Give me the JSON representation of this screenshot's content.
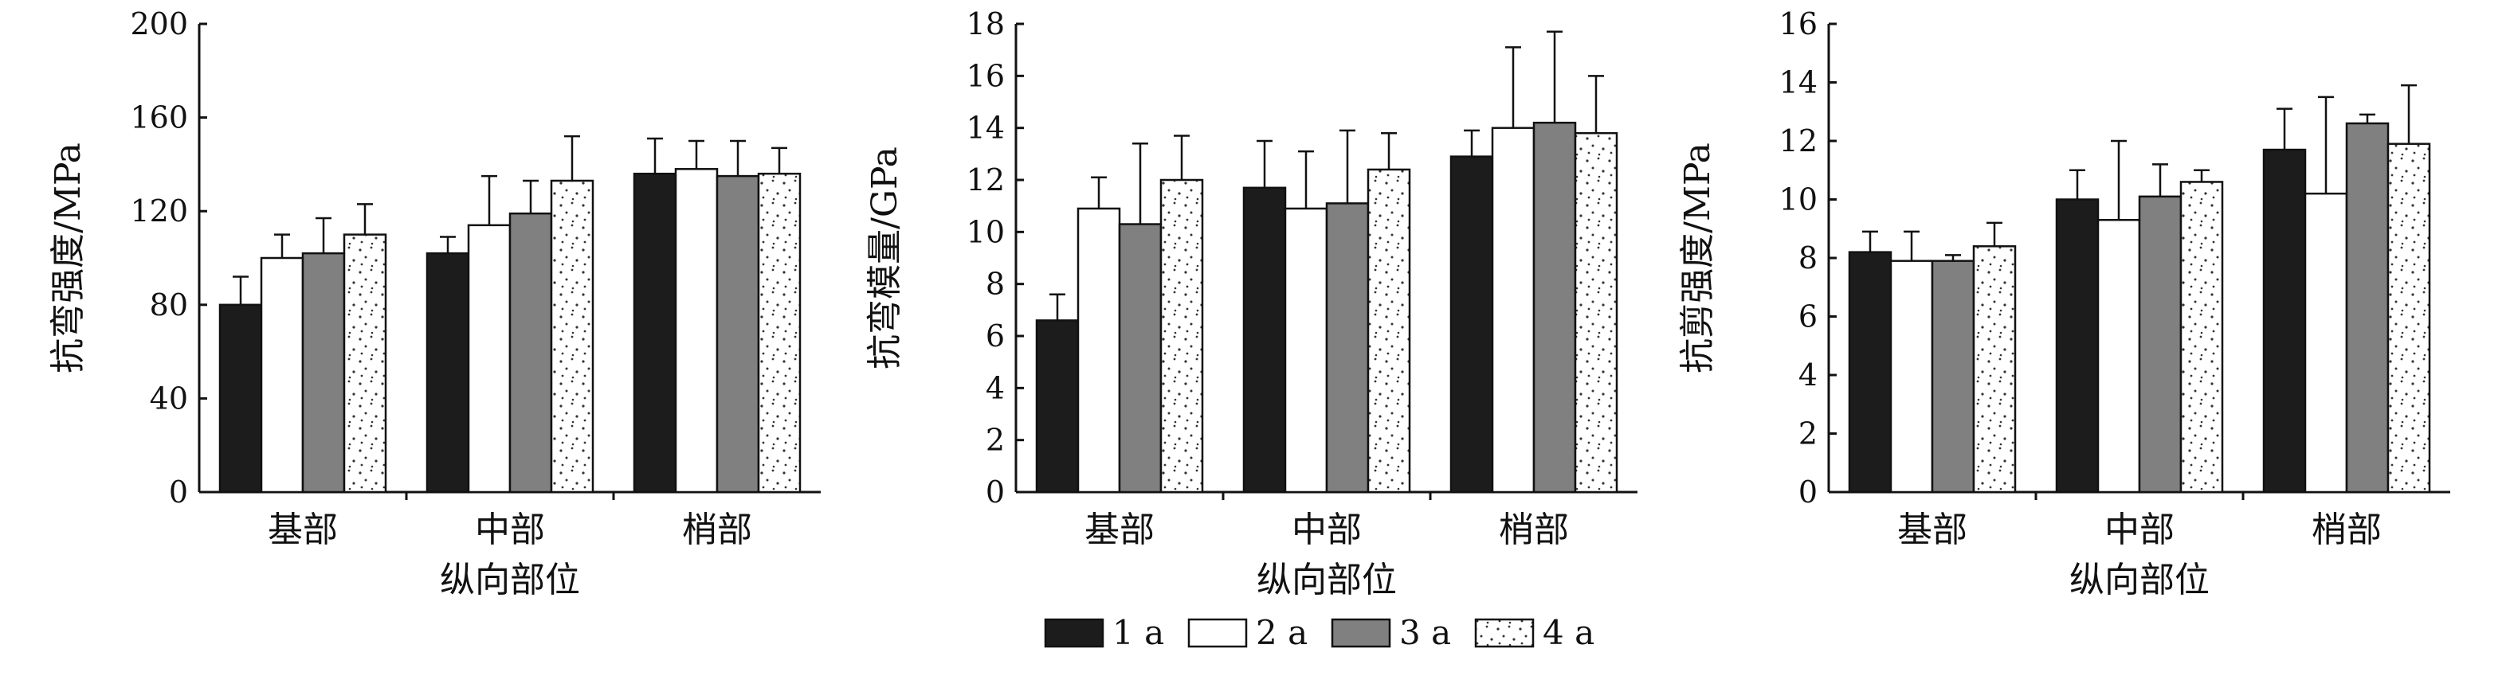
{
  "chart_data": [
    {
      "type": "bar",
      "title": "",
      "xlabel": "纵向部位",
      "ylabel": "抗弯强度/MPa",
      "ylim": [
        0,
        200
      ],
      "yticks": [
        "0",
        "40",
        "80",
        "120",
        "160",
        "200"
      ],
      "categories": [
        "基部",
        "中部",
        "梢部"
      ],
      "grid": false,
      "series": [
        {
          "name": "1 a",
          "values": [
            80,
            102,
            136
          ],
          "errors": [
            12,
            7,
            15
          ]
        },
        {
          "name": "2 a",
          "values": [
            100,
            114,
            138
          ],
          "errors": [
            10,
            21,
            12
          ]
        },
        {
          "name": "3 a",
          "values": [
            102,
            119,
            135
          ],
          "errors": [
            15,
            14,
            15
          ]
        },
        {
          "name": "4 a",
          "values": [
            110,
            133,
            136
          ],
          "errors": [
            13,
            19,
            11
          ]
        }
      ]
    },
    {
      "type": "bar",
      "title": "",
      "xlabel": "纵向部位",
      "ylabel": "抗弯模量/GPa",
      "ylim": [
        0,
        18
      ],
      "yticks": [
        "0",
        "2",
        "4",
        "6",
        "8",
        "10",
        "12",
        "14",
        "16",
        "18"
      ],
      "categories": [
        "基部",
        "中部",
        "梢部"
      ],
      "grid": false,
      "series": [
        {
          "name": "1 a",
          "values": [
            6.6,
            11.7,
            12.9
          ],
          "errors": [
            1.0,
            1.8,
            1.0
          ]
        },
        {
          "name": "2 a",
          "values": [
            10.9,
            10.9,
            14.0
          ],
          "errors": [
            1.2,
            2.2,
            3.1
          ]
        },
        {
          "name": "3 a",
          "values": [
            10.3,
            11.1,
            14.2
          ],
          "errors": [
            3.1,
            2.8,
            3.5
          ]
        },
        {
          "name": "4 a",
          "values": [
            12.0,
            12.4,
            13.8
          ],
          "errors": [
            1.7,
            1.4,
            2.2
          ]
        }
      ]
    },
    {
      "type": "bar",
      "title": "",
      "xlabel": "纵向部位",
      "ylabel": "抗剪强度/MPa",
      "ylim": [
        0,
        16
      ],
      "yticks": [
        "0",
        "2",
        "4",
        "6",
        "8",
        "10",
        "12",
        "14",
        "16"
      ],
      "categories": [
        "基部",
        "中部",
        "梢部"
      ],
      "grid": false,
      "series": [
        {
          "name": "1 a",
          "values": [
            8.2,
            10.0,
            11.7
          ],
          "errors": [
            0.7,
            1.0,
            1.4
          ]
        },
        {
          "name": "2 a",
          "values": [
            7.9,
            9.3,
            10.2
          ],
          "errors": [
            1.0,
            2.7,
            3.3
          ]
        },
        {
          "name": "3 a",
          "values": [
            7.9,
            10.1,
            12.6
          ],
          "errors": [
            0.2,
            1.1,
            0.3
          ]
        },
        {
          "name": "4 a",
          "values": [
            8.4,
            10.6,
            11.9
          ],
          "errors": [
            0.8,
            0.4,
            2.0
          ]
        }
      ]
    }
  ],
  "legend": {
    "placement": "bottom-center",
    "items": [
      "1 a",
      "2 a",
      "3 a",
      "4 a"
    ]
  },
  "colors": {
    "series": [
      "#1c1c1c",
      "#ffffff",
      "#808080",
      "#ffffff"
    ],
    "stroke": "#111111",
    "dots": "#333333"
  }
}
